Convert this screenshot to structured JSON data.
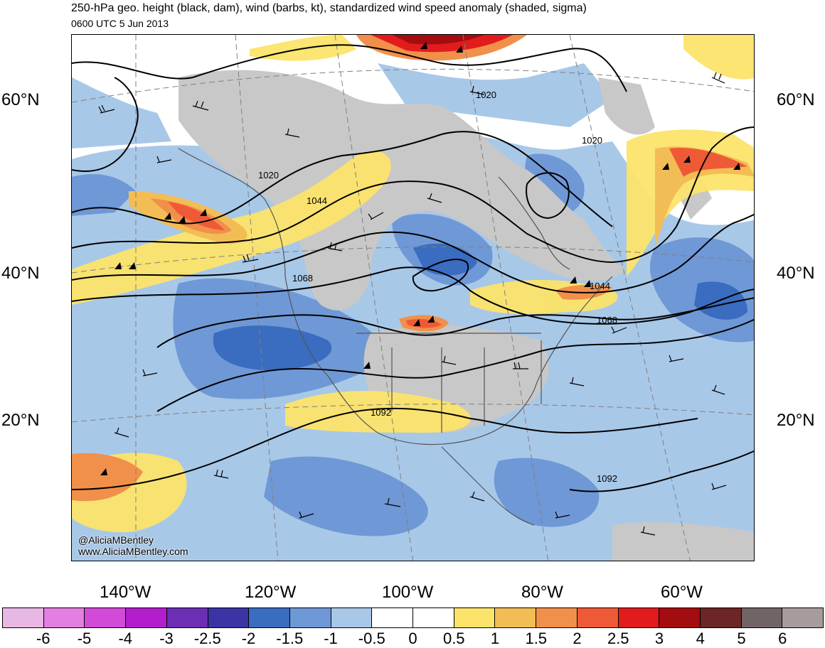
{
  "title": "250-hPa geo. height (black, dam), wind (barbs, kt), standardized wind speed anomaly (shaded, sigma)",
  "valid_time": "0600 UTC 5 Jun 2013",
  "latitude_labels_left": [
    "60°N",
    "40°N",
    "20°N"
  ],
  "latitude_labels_right": [
    "60°N",
    "40°N",
    "20°N"
  ],
  "longitude_labels": [
    "140°W",
    "120°W",
    "100°W",
    "80°W",
    "60°W"
  ],
  "contour_labels": [
    "1020",
    "1020",
    "1020",
    "1044",
    "1044",
    "1068",
    "1068",
    "1092",
    "1092"
  ],
  "credits": [
    "@AliciaMBentley",
    "www.AliciaMBentley.com"
  ],
  "colorbar": {
    "labels": [
      "-6",
      "-5",
      "-4",
      "-3",
      "-2.5",
      "-2",
      "-1.5",
      "-1",
      "-0.5",
      "0",
      "0.5",
      "1",
      "1.5",
      "2",
      "2.5",
      "3",
      "4",
      "5",
      "6"
    ],
    "colors": [
      "#e8b8e4",
      "#e27fe0",
      "#d24bd8",
      "#b21ecc",
      "#6c2eb2",
      "#3b34a4",
      "#3a6cc0",
      "#6f98d6",
      "#a8c8e8",
      "#ffffff",
      "#ffffff",
      "#fce46a",
      "#f3bd56",
      "#f1904a",
      "#ef5a36",
      "#e21c1c",
      "#a30d10",
      "#6c2626",
      "#716464",
      "#a69c9c"
    ]
  },
  "colors": {
    "land_gray": "#c8c8c8",
    "contour": "#000000",
    "border": "#555555"
  }
}
